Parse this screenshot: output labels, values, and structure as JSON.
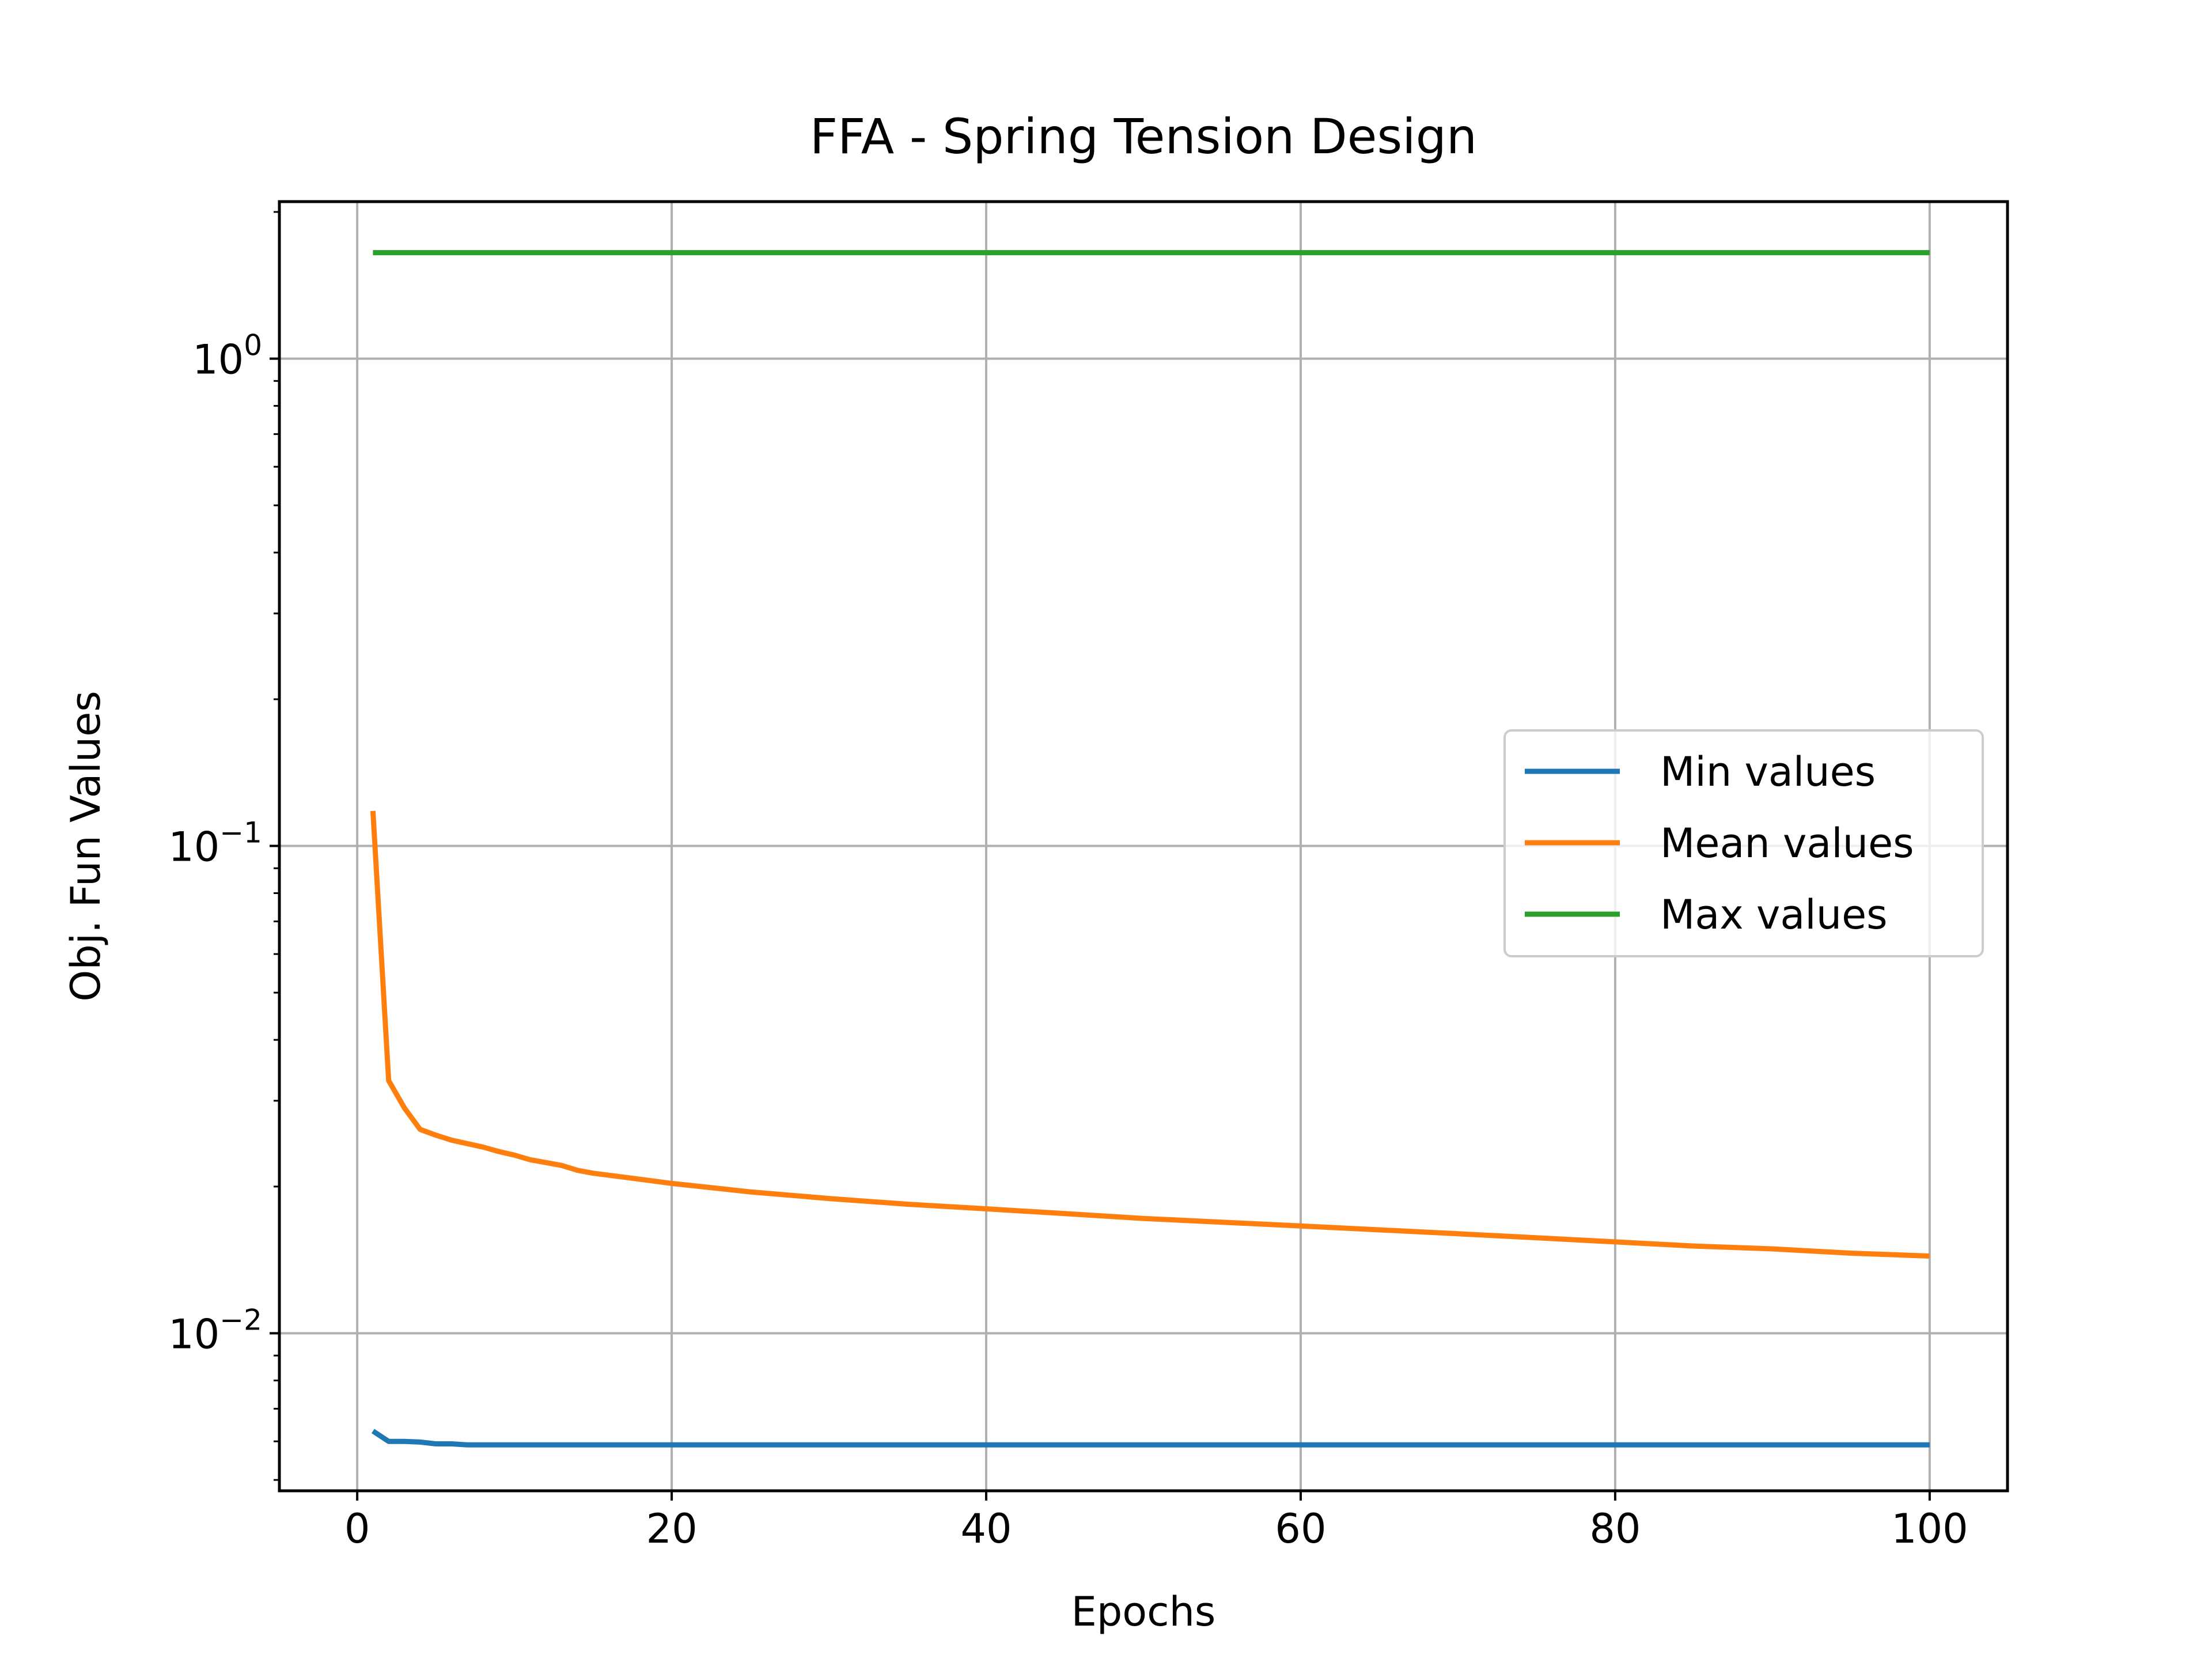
{
  "chart_data": {
    "type": "line",
    "title": "FFA - Spring Tension Design",
    "xlabel": "Epochs",
    "ylabel": "Obj. Fun Values",
    "xlim": [
      -4.95,
      104.95
    ],
    "ylim": [
      0.00475,
      2.1
    ],
    "yscale": "log",
    "grid": true,
    "legend_position": "center-right",
    "x_ticks": [
      0,
      20,
      40,
      60,
      80,
      100
    ],
    "x_tick_labels": [
      "0",
      "20",
      "40",
      "60",
      "80",
      "100"
    ],
    "y_ticks": [
      0.01,
      0.1,
      1
    ],
    "y_tick_labels": [
      {
        "base": "10",
        "exp": "−2"
      },
      {
        "base": "10",
        "exp": "−1"
      },
      {
        "base": "10",
        "exp": "0"
      }
    ],
    "series": [
      {
        "name": "Min values",
        "color": "#1f77b4",
        "x": [
          1,
          2,
          3,
          4,
          5,
          6,
          7,
          8,
          10,
          100
        ],
        "y": [
          0.0063,
          0.006,
          0.006,
          0.00598,
          0.00593,
          0.00593,
          0.0059,
          0.0059,
          0.0059,
          0.0059
        ]
      },
      {
        "name": "Mean values",
        "color": "#ff7f0e",
        "x": [
          1,
          2,
          3,
          4,
          5,
          6,
          7,
          8,
          9,
          10,
          11,
          12,
          13,
          14,
          15,
          17,
          20,
          25,
          30,
          35,
          40,
          45,
          50,
          55,
          60,
          65,
          70,
          75,
          80,
          85,
          90,
          95,
          100
        ],
        "y": [
          0.118,
          0.033,
          0.029,
          0.0262,
          0.0255,
          0.0249,
          0.0245,
          0.0241,
          0.0236,
          0.0232,
          0.0227,
          0.0224,
          0.0221,
          0.0216,
          0.0213,
          0.0209,
          0.0203,
          0.0195,
          0.0189,
          0.0184,
          0.018,
          0.0176,
          0.0172,
          0.0169,
          0.0166,
          0.0163,
          0.016,
          0.0157,
          0.0154,
          0.0151,
          0.0149,
          0.0146,
          0.0144
        ]
      },
      {
        "name": "Max values",
        "color": "#2ca02c",
        "x": [
          1,
          100
        ],
        "y": [
          1.65,
          1.65
        ]
      }
    ]
  }
}
